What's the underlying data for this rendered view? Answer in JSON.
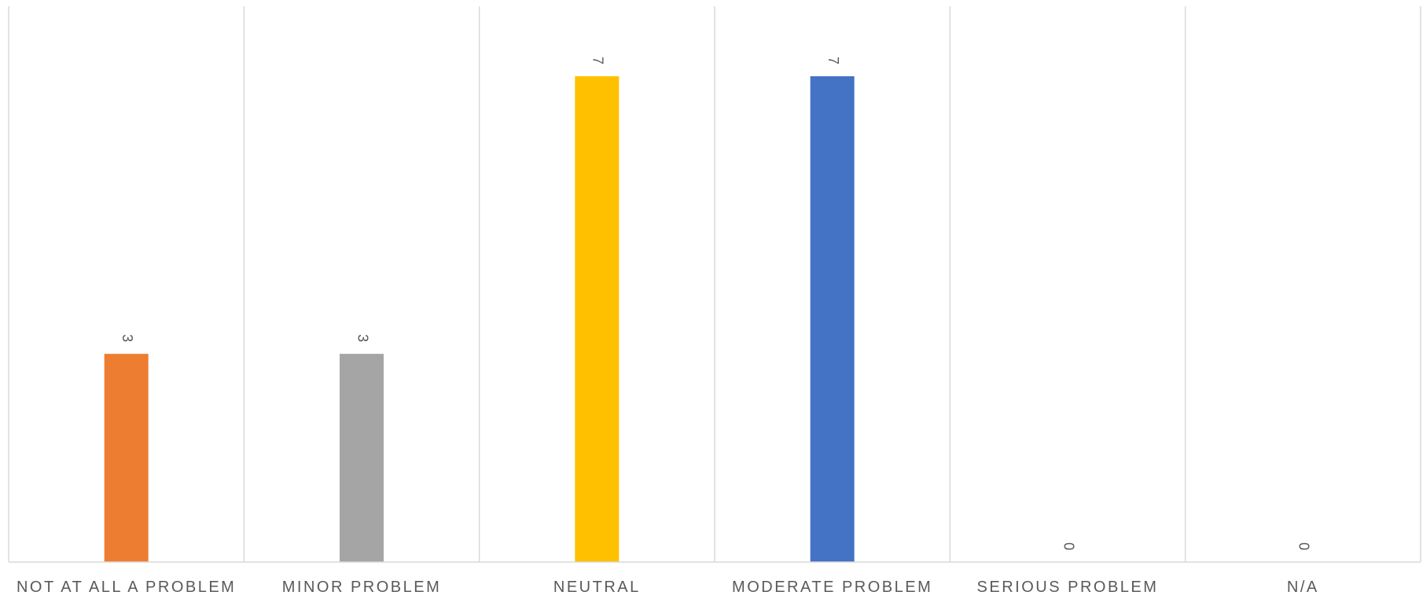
{
  "chart_data": {
    "type": "bar",
    "title": "",
    "xlabel": "",
    "ylabel": "",
    "categories": [
      "NOT AT ALL A PROBLEM",
      "MINOR PROBLEM",
      "NEUTRAL",
      "MODERATE PROBLEM",
      "SERIOUS PROBLEM",
      "N/A"
    ],
    "values": [
      3,
      3,
      7,
      7,
      0,
      0
    ],
    "colors": [
      "#ed7d31",
      "#a5a5a5",
      "#ffc000",
      "#4472c4",
      "#5b9bd5",
      "#70ad47"
    ],
    "ylim": [
      0,
      8
    ],
    "grid": "vertical category separators",
    "legend": "none",
    "data_labels": true
  }
}
